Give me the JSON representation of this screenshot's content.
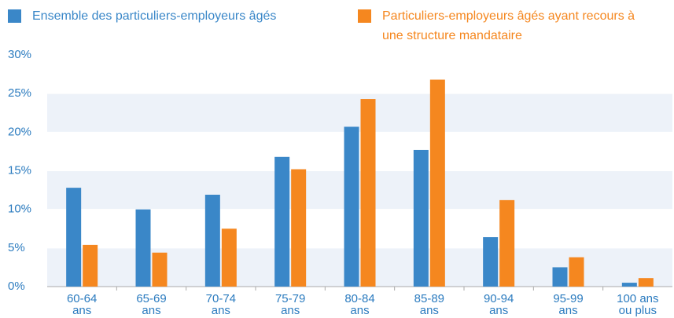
{
  "chart_data": {
    "type": "bar",
    "categories": [
      [
        "60-64",
        "ans"
      ],
      [
        "65-69",
        "ans"
      ],
      [
        "70-74",
        "ans"
      ],
      [
        "75-79",
        "ans"
      ],
      [
        "80-84",
        "ans"
      ],
      [
        "85-89",
        "ans"
      ],
      [
        "90-94",
        "ans"
      ],
      [
        "95-99",
        "ans"
      ],
      [
        "100 ans",
        "ou plus"
      ]
    ],
    "series": [
      {
        "name": "Ensemble des particuliers-employeurs âgés",
        "color": "#3a87c8",
        "values": [
          12.8,
          10.0,
          11.9,
          16.8,
          20.7,
          17.7,
          6.4,
          2.5,
          0.5
        ]
      },
      {
        "name": "Particuliers-employeurs âgés ayant recours à une structure mandataire",
        "color": "#f5871f",
        "values": [
          5.4,
          4.4,
          7.5,
          15.2,
          24.3,
          26.8,
          11.2,
          3.8,
          1.1
        ]
      }
    ],
    "ylim": [
      0,
      30
    ],
    "yticks": [
      {
        "value": 0,
        "label": "0%"
      },
      {
        "value": 5,
        "label": "5%"
      },
      {
        "value": 10,
        "label": "10%"
      },
      {
        "value": 15,
        "label": "15%"
      },
      {
        "value": 20,
        "label": "20%"
      },
      {
        "value": 25,
        "label": "25%"
      },
      {
        "value": 30,
        "label": "30%"
      }
    ],
    "legend": "top"
  }
}
